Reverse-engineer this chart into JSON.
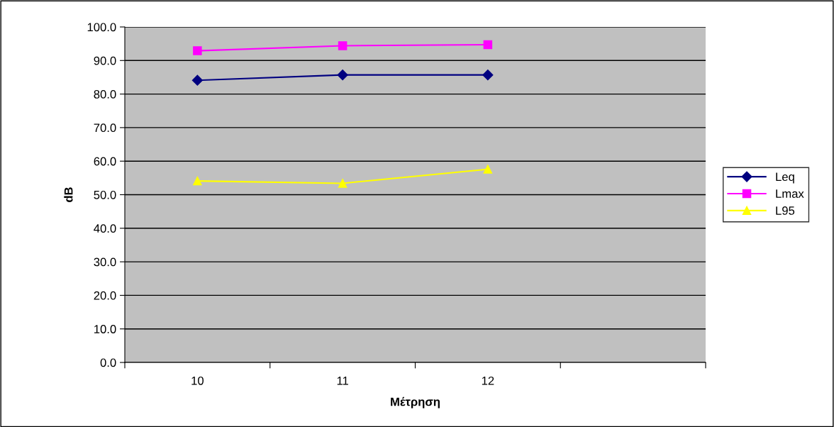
{
  "chart_data": {
    "type": "line",
    "xlabel": "Μέτρηση",
    "ylabel": "dB",
    "categories": [
      "10",
      "11",
      "12",
      null
    ],
    "series": [
      {
        "name": "Leq",
        "color": "#000080",
        "marker": "diamond",
        "values": [
          84.1,
          85.7,
          85.7,
          null
        ]
      },
      {
        "name": "Lmax",
        "color": "#ff00ff",
        "marker": "square",
        "values": [
          92.9,
          94.4,
          94.7,
          null
        ]
      },
      {
        "name": "L95",
        "color": "#ffff00",
        "marker": "triangle",
        "values": [
          54.1,
          53.4,
          57.6,
          null
        ]
      }
    ],
    "ylim": [
      0,
      100
    ],
    "yticks": [
      {
        "value": 0,
        "label": "0.0"
      },
      {
        "value": 10,
        "label": "10.0"
      },
      {
        "value": 20,
        "label": "20.0"
      },
      {
        "value": 30,
        "label": "30.0"
      },
      {
        "value": 40,
        "label": "40.0"
      },
      {
        "value": 50,
        "label": "50.0"
      },
      {
        "value": 60,
        "label": "60.0"
      },
      {
        "value": 70,
        "label": "70.0"
      },
      {
        "value": 80,
        "label": "80.0"
      },
      {
        "value": 90,
        "label": "90.0"
      },
      {
        "value": 100,
        "label": "100.0"
      }
    ],
    "grid": "y",
    "legend": "right",
    "line_style": "solid"
  }
}
